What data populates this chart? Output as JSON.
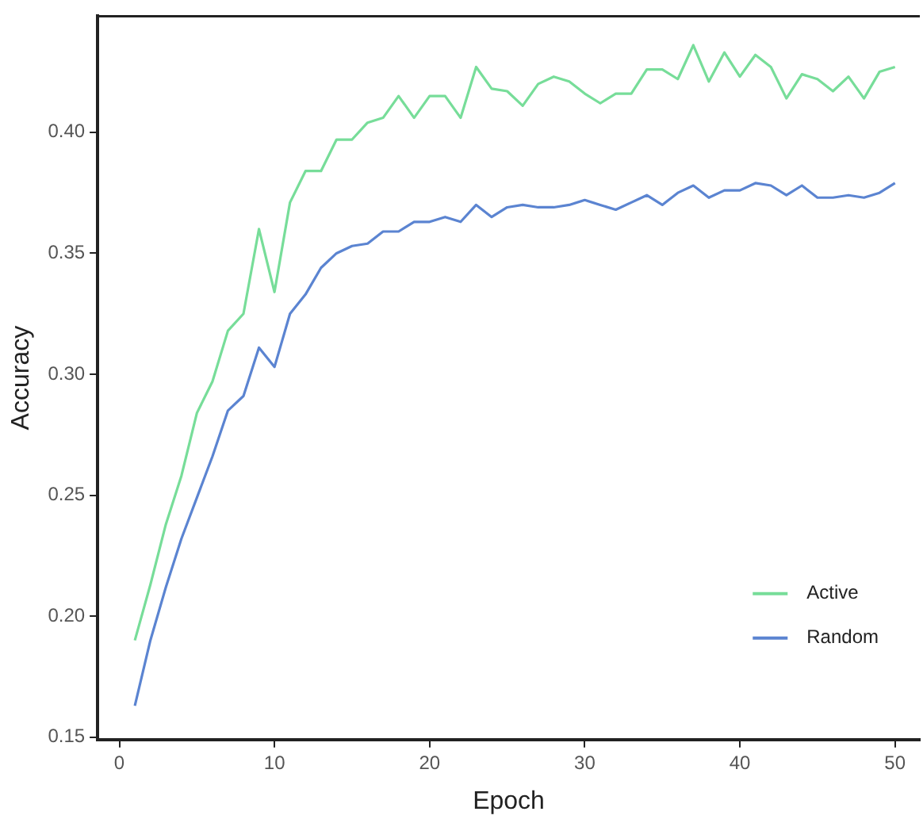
{
  "chart_data": {
    "type": "line",
    "xlabel": "Epoch",
    "ylabel": "Accuracy",
    "x": [
      1,
      2,
      3,
      4,
      5,
      6,
      7,
      8,
      9,
      10,
      11,
      12,
      13,
      14,
      15,
      16,
      17,
      18,
      19,
      20,
      21,
      22,
      23,
      24,
      25,
      26,
      27,
      28,
      29,
      30,
      31,
      32,
      33,
      34,
      35,
      36,
      37,
      38,
      39,
      40,
      41,
      42,
      43,
      44,
      45,
      46,
      47,
      48,
      49,
      50
    ],
    "series": [
      {
        "name": "Active",
        "color": "#77dd99",
        "values": [
          0.19,
          0.213,
          0.238,
          0.258,
          0.284,
          0.297,
          0.318,
          0.325,
          0.36,
          0.334,
          0.371,
          0.384,
          0.384,
          0.397,
          0.397,
          0.404,
          0.406,
          0.415,
          0.406,
          0.415,
          0.415,
          0.406,
          0.427,
          0.418,
          0.417,
          0.411,
          0.42,
          0.423,
          0.421,
          0.416,
          0.412,
          0.416,
          0.416,
          0.426,
          0.426,
          0.422,
          0.436,
          0.421,
          0.433,
          0.423,
          0.432,
          0.427,
          0.414,
          0.424,
          0.422,
          0.417,
          0.423,
          0.414,
          0.425,
          0.427
        ]
      },
      {
        "name": "Random",
        "color": "#5b84d1",
        "values": [
          0.163,
          0.19,
          0.212,
          0.232,
          0.249,
          0.266,
          0.285,
          0.291,
          0.311,
          0.303,
          0.325,
          0.333,
          0.344,
          0.35,
          0.353,
          0.354,
          0.359,
          0.359,
          0.363,
          0.363,
          0.365,
          0.363,
          0.37,
          0.365,
          0.369,
          0.37,
          0.369,
          0.369,
          0.37,
          0.372,
          0.37,
          0.368,
          0.371,
          0.374,
          0.37,
          0.375,
          0.378,
          0.373,
          0.376,
          0.376,
          0.379,
          0.378,
          0.374,
          0.378,
          0.373,
          0.373,
          0.374,
          0.373,
          0.375,
          0.379
        ]
      }
    ],
    "xlim": [
      -1.4,
      51.6
    ],
    "xticks": [
      0,
      10,
      20,
      30,
      40,
      50
    ],
    "ylim": [
      0.149,
      0.448
    ],
    "yticks": [
      0.15,
      {
        "value": 0.2,
        "label": "0.20"
      },
      0.25,
      {
        "value": 0.3,
        "label": "0.30"
      },
      0.35,
      {
        "value": 0.4,
        "label": "0.40"
      }
    ],
    "grid": false,
    "legend": "bottom right",
    "marker": "none",
    "line_style": "solid"
  }
}
